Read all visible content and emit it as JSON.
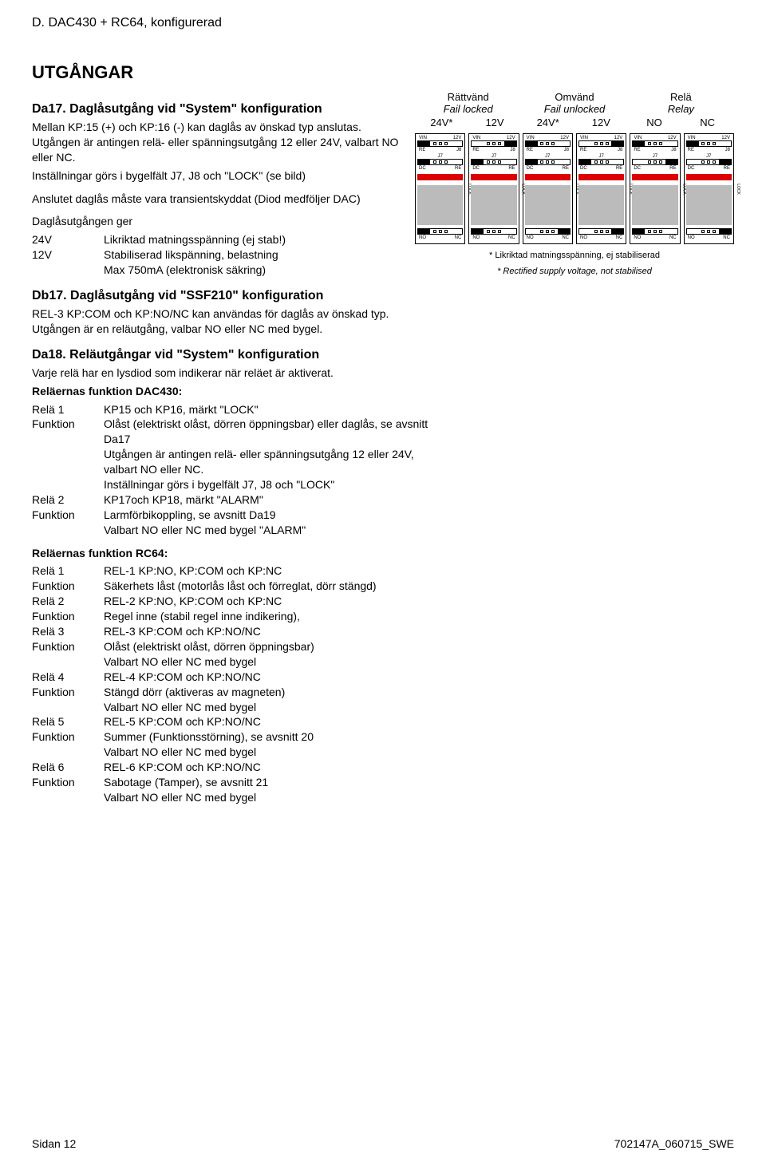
{
  "header": "D. DAC430 + RC64, konfigurerad",
  "section_title": "UTGÅNGAR",
  "da17": {
    "title": "Da17. Daglåsutgång vid \"System\" konfiguration",
    "p1": "Mellan KP:15 (+) och KP:16 (-) kan daglås av önskad typ anslutas. Utgången är antingen relä- eller spänningsutgång 12 eller 24V, valbart NO eller NC.",
    "p2": "Inställningar görs i bygelfält J7, J8 och \"LOCK\" (se bild)",
    "p3": "Anslutet daglås måste vara transientskyddat (Diod medföljer DAC)",
    "sub1": "Daglåsutgången ger",
    "row1_key": "24V",
    "row1_val": "Likriktad matningsspänning (ej stab!)",
    "row2_key": "12V",
    "row2_val": "Stabiliserad likspänning, belastning",
    "row3_val": "Max 750mA (elektronisk säkring)"
  },
  "db17": {
    "title": "Db17. Daglåsutgång vid \"SSF210\" konfiguration",
    "p1": "REL-3 KP:COM och KP:NO/NC kan användas för daglås av önskad typ. Utgången är en reläutgång, valbar NO eller NC med bygel."
  },
  "da18": {
    "title": "Da18. Reläutgångar vid \"System\" konfiguration",
    "p1": "Varje relä har en lysdiod som indikerar när reläet är aktiverat.",
    "sub_dac": "Reläernas funktion DAC430:",
    "dac_rows": [
      {
        "k": "Relä 1",
        "v": "KP15 och KP16, märkt \"LOCK\""
      },
      {
        "k": "Funktion",
        "v": "Olåst (elektriskt olåst, dörren öppningsbar) eller daglås, se avsnitt Da17"
      },
      {
        "k": "",
        "v": "Utgången är antingen relä- eller spänningsutgång 12 eller 24V, valbart NO eller NC."
      },
      {
        "k": "",
        "v": "Inställningar görs i bygelfält J7, J8 och \"LOCK\""
      },
      {
        "k": "Relä 2",
        "v": "KP17och KP18, märkt \"ALARM\""
      },
      {
        "k": "Funktion",
        "v": "Larmförbikoppling, se avsnitt Da19"
      },
      {
        "k": "",
        "v": "Valbart NO eller NC med bygel \"ALARM\""
      }
    ],
    "sub_rc": "Reläernas funktion RC64:",
    "rc_rows": [
      {
        "k": "Relä 1",
        "v": "REL-1 KP:NO, KP:COM och KP:NC"
      },
      {
        "k": "Funktion",
        "v": "Säkerhets låst (motorlås låst och förreglat, dörr stängd)"
      },
      {
        "k": "Relä 2",
        "v": "REL-2 KP:NO, KP:COM och KP:NC"
      },
      {
        "k": "Funktion",
        "v": "Regel inne (stabil regel inne indikering),"
      },
      {
        "k": "Relä 3",
        "v": "REL-3 KP:COM och KP:NO/NC"
      },
      {
        "k": "Funktion",
        "v": "Olåst (elektriskt olåst, dörren öppningsbar)"
      },
      {
        "k": "",
        "v": "Valbart NO eller NC med bygel"
      },
      {
        "k": "Relä 4",
        "v": "REL-4 KP:COM och KP:NO/NC"
      },
      {
        "k": "Funktion",
        "v": "Stängd dörr (aktiveras av magneten)"
      },
      {
        "k": "",
        "v": "Valbart NO eller NC med bygel"
      },
      {
        "k": "Relä 5",
        "v": "REL-5 KP:COM och KP:NO/NC"
      },
      {
        "k": "Funktion",
        "v": "Summer (Funktionsstörning), se avsnitt 20"
      },
      {
        "k": "",
        "v": "Valbart NO eller NC med bygel"
      },
      {
        "k": "Relä 6",
        "v": "REL-6 KP:COM och KP:NO/NC"
      },
      {
        "k": "Funktion",
        "v": "Sabotage (Tamper), se avsnitt 21"
      },
      {
        "k": "",
        "v": "Valbart NO eller NC med bygel"
      }
    ]
  },
  "diagram": {
    "groups": [
      {
        "line1": "Rättvänd",
        "line2": "Fail locked"
      },
      {
        "line1": "Omvänd",
        "line2": "Fail unlocked"
      },
      {
        "line1": "Relä",
        "line2": "Relay"
      }
    ],
    "subheaders": [
      "24V*",
      "12V",
      "24V*",
      "12V",
      "NO",
      "NC"
    ],
    "module": {
      "top_left": "VIN",
      "top_right": "12V",
      "block1_left": "RE",
      "block1_right": "J8",
      "mid_label": "J7",
      "block2_left": "DC",
      "block2_right": "RE",
      "bot_left": "NO",
      "bot_right": "NC",
      "lock": "LOCK"
    },
    "jumper_config": [
      {
        "j8": "left",
        "j7": "left",
        "lock": "left"
      },
      {
        "j8": "right",
        "j7": "left",
        "lock": "left"
      },
      {
        "j8": "left",
        "j7": "left",
        "lock": "right"
      },
      {
        "j8": "right",
        "j7": "left",
        "lock": "right"
      },
      {
        "j8": "left",
        "j7": "right",
        "lock": "left"
      },
      {
        "j8": "left",
        "j7": "right",
        "lock": "right"
      }
    ],
    "colors": {
      "red": "#d00000",
      "gray": "#bbbbbb",
      "border": "#000000"
    },
    "footnote1": "* Likriktad matningsspänning, ej stabiliserad",
    "footnote2": "* Rectified supply voltage, not stabilised"
  },
  "footer": {
    "left": "Sidan 12",
    "right": "702147A_060715_SWE"
  }
}
